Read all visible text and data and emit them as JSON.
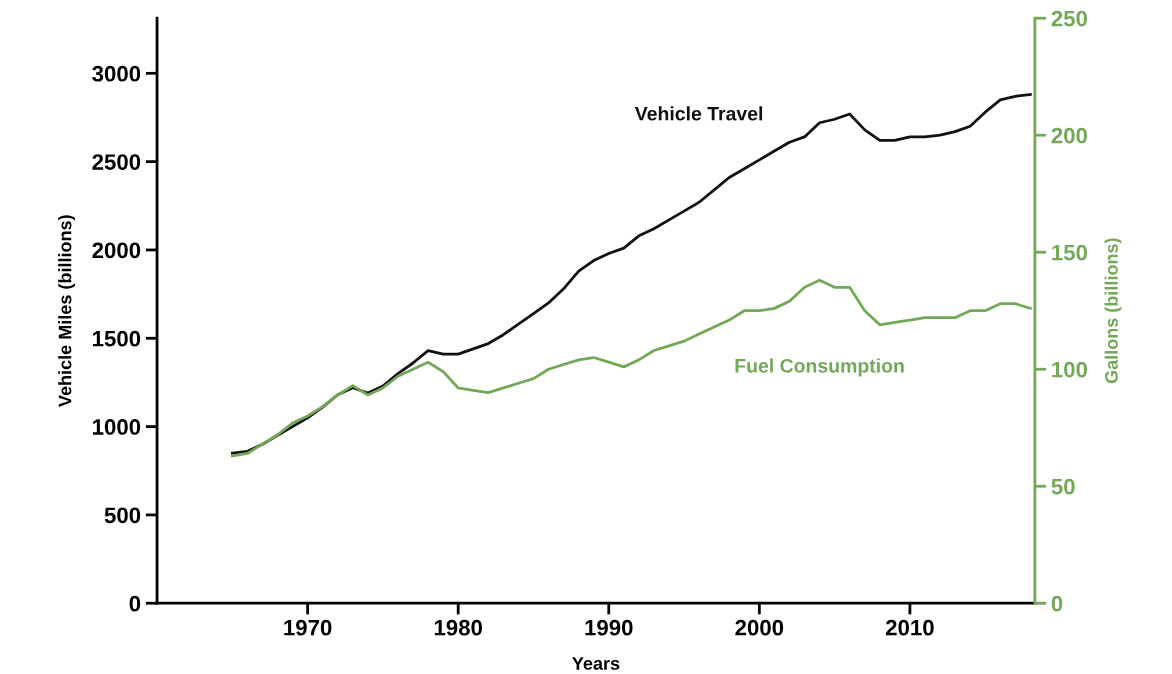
{
  "chart_data": {
    "type": "line",
    "xlabel": "Years",
    "ylabel": "Vehicle Miles (billions)",
    "y2label": "Gallons (billions)",
    "x": [
      1965,
      1966,
      1967,
      1968,
      1969,
      1970,
      1971,
      1972,
      1973,
      1974,
      1975,
      1976,
      1977,
      1978,
      1979,
      1980,
      1981,
      1982,
      1983,
      1984,
      1985,
      1986,
      1987,
      1988,
      1989,
      1990,
      1991,
      1992,
      1993,
      1994,
      1995,
      1996,
      1997,
      1998,
      1999,
      2000,
      2001,
      2002,
      2003,
      2004,
      2005,
      2006,
      2007,
      2008,
      2009,
      2010,
      2011,
      2012,
      2013,
      2014,
      2015,
      2016,
      2017,
      2018
    ],
    "series": [
      {
        "name": "Vehicle Travel",
        "color": "#111111",
        "values": [
          850,
          860,
          900,
          950,
          1000,
          1050,
          1110,
          1180,
          1220,
          1190,
          1230,
          1300,
          1360,
          1430,
          1410,
          1410,
          1440,
          1470,
          1520,
          1580,
          1640,
          1700,
          1780,
          1880,
          1940,
          1980,
          2010,
          2080,
          2120,
          2170,
          2220,
          2270,
          2340,
          2410,
          2460,
          2510,
          2560,
          2610,
          2640,
          2720,
          2740,
          2770,
          2680,
          2620,
          2620,
          2640,
          2640,
          2650,
          2670,
          2700,
          2780,
          2850,
          2870,
          2880
        ]
      },
      {
        "name": "Fuel Consumption",
        "color": "#72a857",
        "axis": "y2",
        "values": [
          63,
          64,
          68,
          72,
          77,
          80,
          84,
          89,
          93,
          89,
          92,
          97,
          100,
          103,
          99,
          92,
          91,
          90,
          92,
          94,
          96,
          100,
          102,
          104,
          105,
          103,
          101,
          104,
          108,
          110,
          112,
          115,
          118,
          121,
          125,
          125,
          126,
          129,
          135,
          138,
          135,
          135,
          125,
          119,
          120,
          121,
          122,
          122,
          122,
          125,
          125,
          128,
          128,
          126
        ]
      }
    ],
    "xlim": [
      1960,
      2018.3
    ],
    "xticks": [
      1970,
      1980,
      1990,
      2000,
      2010
    ],
    "ylim": [
      0,
      3312
    ],
    "yticks": [
      0,
      500,
      1000,
      1500,
      2000,
      2500,
      3000
    ],
    "y2lim": [
      0,
      250
    ],
    "y2ticks": [
      0,
      50,
      100,
      150,
      200,
      250
    ],
    "grid": false,
    "legend": false,
    "marker": "none",
    "line_style": "solid"
  }
}
